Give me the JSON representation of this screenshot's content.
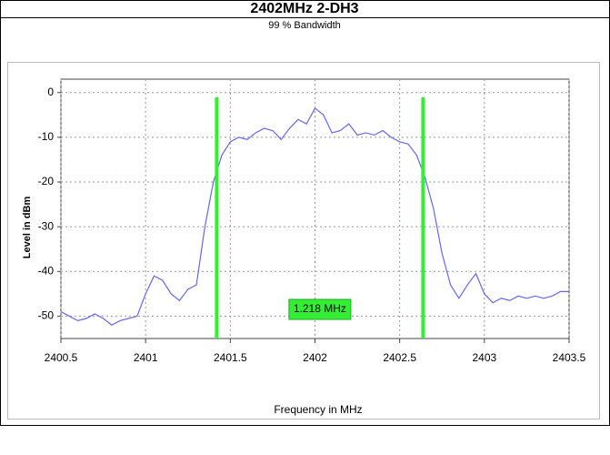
{
  "chart_data": {
    "type": "line",
    "title": "2402MHz 2-DH3",
    "subtitle": "99 % Bandwidth",
    "x_label": "Frequency in MHz",
    "y_label": "Level in dBm",
    "annotation": "1.218 MHz",
    "markers": [
      2401.42,
      2402.638
    ],
    "marker_color": "#33ee33",
    "xlim": [
      2400.5,
      2403.5
    ],
    "xticks": [
      2400.5,
      2401,
      2401.5,
      2402,
      2402.5,
      2403,
      2403.5
    ],
    "ylim": [
      -55,
      3
    ],
    "yticks": [
      0,
      -10,
      -20,
      -30,
      -40,
      -50
    ],
    "grid": true,
    "series": [
      {
        "color": "#6666ee",
        "x": [
          2400.5,
          2400.55,
          2400.6,
          2400.65,
          2400.7,
          2400.75,
          2400.8,
          2400.85,
          2400.9,
          2400.95,
          2401,
          2401.05,
          2401.1,
          2401.15,
          2401.2,
          2401.25,
          2401.3,
          2401.35,
          2401.4,
          2401.45,
          2401.5,
          2401.55,
          2401.6,
          2401.65,
          2401.7,
          2401.75,
          2401.8,
          2401.85,
          2401.9,
          2401.95,
          2402,
          2402.05,
          2402.1,
          2402.15,
          2402.2,
          2402.25,
          2402.3,
          2402.35,
          2402.4,
          2402.45,
          2402.5,
          2402.55,
          2402.6,
          2402.65,
          2402.7,
          2402.75,
          2402.8,
          2402.85,
          2402.9,
          2402.95,
          2403,
          2403.05,
          2403.1,
          2403.15,
          2403.2,
          2403.25,
          2403.3,
          2403.35,
          2403.4,
          2403.45,
          2403.5
        ],
        "values": [
          -49,
          -50,
          -51,
          -50.5,
          -49.5,
          -50.5,
          -52,
          -51,
          -50.5,
          -50,
          -45,
          -41,
          -42,
          -45,
          -46.5,
          -44,
          -43,
          -30,
          -20,
          -14,
          -11,
          -10,
          -10.5,
          -9,
          -8,
          -8.5,
          -10.5,
          -8,
          -6,
          -7,
          -3.5,
          -5,
          -9,
          -8.5,
          -7,
          -9.5,
          -9,
          -9.5,
          -8.5,
          -10,
          -11,
          -11.5,
          -14,
          -19,
          -26,
          -36,
          -43,
          -46,
          -43,
          -40.5,
          -45,
          -47,
          -46,
          -46.5,
          -45.5,
          -46,
          -45.5,
          -46,
          -45.5,
          -44.5,
          -44.5
        ]
      }
    ]
  }
}
